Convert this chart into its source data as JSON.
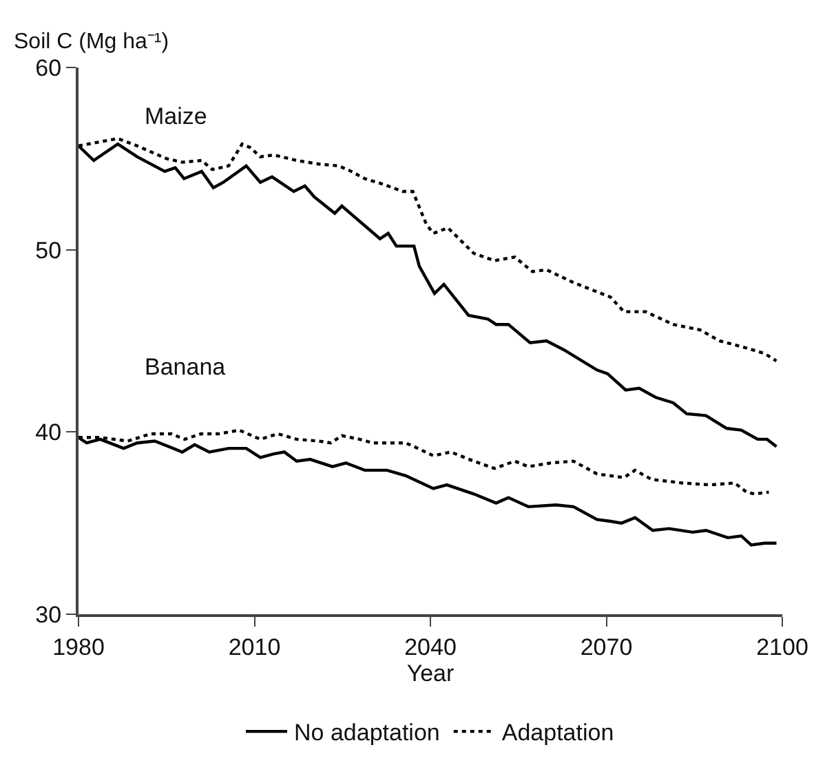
{
  "chart_data": {
    "type": "line",
    "xlabel": "Year",
    "ylabel": "Soil C (Mg ha⁻¹)",
    "xlim": [
      1980,
      2100
    ],
    "xticks": [
      1980,
      2010,
      2040,
      2070,
      2100
    ],
    "ylim": [
      30,
      60
    ],
    "yticks": [
      30,
      40,
      50,
      60
    ],
    "legend": "bottom",
    "marker": "none",
    "annotations": [
      "Maize",
      "Banana"
    ],
    "series": [
      {
        "name": "No adaptation",
        "color": "#000000",
        "line_style": "solid",
        "x": [
          1980,
          1982.6,
          1986.7,
          1990,
          1994.7,
          1996.5,
          1998,
          2001,
          2003,
          2004.7,
          2008.6,
          2011,
          2013,
          2016.7,
          2018.6,
          2020.2,
          2023.7,
          2024.9,
          2031.4,
          2032.8,
          2034.2,
          2037.2,
          2038.1,
          2040.7,
          2042.3,
          2046.5,
          2049.8,
          2051.2,
          2053.3,
          2057,
          2059.8,
          2062.8,
          2068.4,
          2070.2,
          2073.3,
          2075.6,
          2078.4,
          2081.4,
          2083.7,
          2087,
          2090.5,
          2093,
          2095.8,
          2097.4,
          2099
        ],
        "values": [
          55.7,
          54.9,
          55.8,
          55.1,
          54.3,
          54.5,
          53.9,
          54.3,
          53.4,
          53.7,
          54.6,
          53.7,
          54.0,
          53.2,
          53.5,
          52.9,
          52.0,
          52.4,
          50.6,
          50.9,
          50.2,
          50.2,
          49.1,
          47.6,
          48.1,
          46.4,
          46.2,
          45.9,
          45.9,
          44.9,
          45.0,
          44.5,
          43.4,
          43.2,
          42.3,
          42.4,
          41.9,
          41.6,
          41.0,
          40.9,
          40.2,
          40.1,
          39.6,
          39.6,
          39.2
        ]
      },
      {
        "name": "Adaptation",
        "color": "#000000",
        "line_style": "dotted",
        "x": [
          1980,
          1986.7,
          1990,
          1995,
          1997.7,
          2001,
          2002.8,
          2005.6,
          2007.9,
          2009.3,
          2011,
          2013.3,
          2017.2,
          2021,
          2024.4,
          2026.5,
          2028.8,
          2031.9,
          2035.3,
          2037,
          2039.3,
          2040.5,
          2043,
          2047.4,
          2050.9,
          2054.4,
          2057.4,
          2059.8,
          2064.4,
          2070.7,
          2073,
          2076.7,
          2081.4,
          2086,
          2089.3,
          2094,
          2097,
          2099
        ],
        "values": [
          55.7,
          56.1,
          55.7,
          55.0,
          54.8,
          54.9,
          54.4,
          54.6,
          55.8,
          55.6,
          55.1,
          55.2,
          54.9,
          54.7,
          54.6,
          54.3,
          53.9,
          53.6,
          53.2,
          53.2,
          51.4,
          50.9,
          51.2,
          49.8,
          49.4,
          49.6,
          48.8,
          48.9,
          48.2,
          47.4,
          46.6,
          46.6,
          45.9,
          45.6,
          45.0,
          44.6,
          44.3,
          43.9
        ]
      },
      {
        "color": "#000000",
        "line_style": "solid",
        "x": [
          1980,
          1981.4,
          1983.7,
          1987.7,
          1990,
          1993,
          1997.7,
          1999.8,
          2002.3,
          2005.6,
          2008.6,
          2011,
          2013.3,
          2015.1,
          2017.2,
          2019.5,
          2023.3,
          2025.6,
          2028.8,
          2032.6,
          2035.8,
          2040.5,
          2042.8,
          2047.4,
          2051.2,
          2053.3,
          2056.7,
          2061.4,
          2064.4,
          2068.4,
          2070.7,
          2072.6,
          2074.9,
          2077.9,
          2080.7,
          2084.7,
          2087,
          2090.7,
          2093,
          2094.7,
          2097,
          2099
        ],
        "values": [
          39.7,
          39.4,
          39.6,
          39.1,
          39.4,
          39.5,
          38.9,
          39.3,
          38.9,
          39.1,
          39.1,
          38.6,
          38.8,
          38.9,
          38.4,
          38.5,
          38.1,
          38.3,
          37.9,
          37.9,
          37.6,
          36.9,
          37.1,
          36.6,
          36.1,
          36.4,
          35.9,
          36.0,
          35.9,
          35.2,
          35.1,
          35.0,
          35.3,
          34.6,
          34.7,
          34.5,
          34.6,
          34.2,
          34.3,
          33.8,
          33.9,
          33.9
        ]
      },
      {
        "color": "#000000",
        "line_style": "dotted",
        "x": [
          1980,
          1983.7,
          1988.4,
          1992.3,
          1995.8,
          1998.1,
          2000.9,
          2004,
          2007.4,
          2011,
          2014,
          2017.2,
          2021,
          2023,
          2024.9,
          2027.9,
          2030.2,
          2035.8,
          2037.2,
          2040.5,
          2043.5,
          2047.4,
          2050.9,
          2054.4,
          2056.7,
          2060.5,
          2064.4,
          2068.4,
          2073,
          2074.9,
          2077.7,
          2083,
          2087.7,
          2091.9,
          2093.9,
          2095.3,
          2097.7
        ],
        "values": [
          39.7,
          39.7,
          39.5,
          39.9,
          39.9,
          39.6,
          39.9,
          39.9,
          40.1,
          39.6,
          39.9,
          39.6,
          39.5,
          39.4,
          39.8,
          39.6,
          39.4,
          39.4,
          39.2,
          38.7,
          38.9,
          38.4,
          38.0,
          38.4,
          38.1,
          38.3,
          38.4,
          37.7,
          37.5,
          37.9,
          37.4,
          37.2,
          37.1,
          37.2,
          36.7,
          36.6,
          36.7
        ]
      }
    ]
  }
}
